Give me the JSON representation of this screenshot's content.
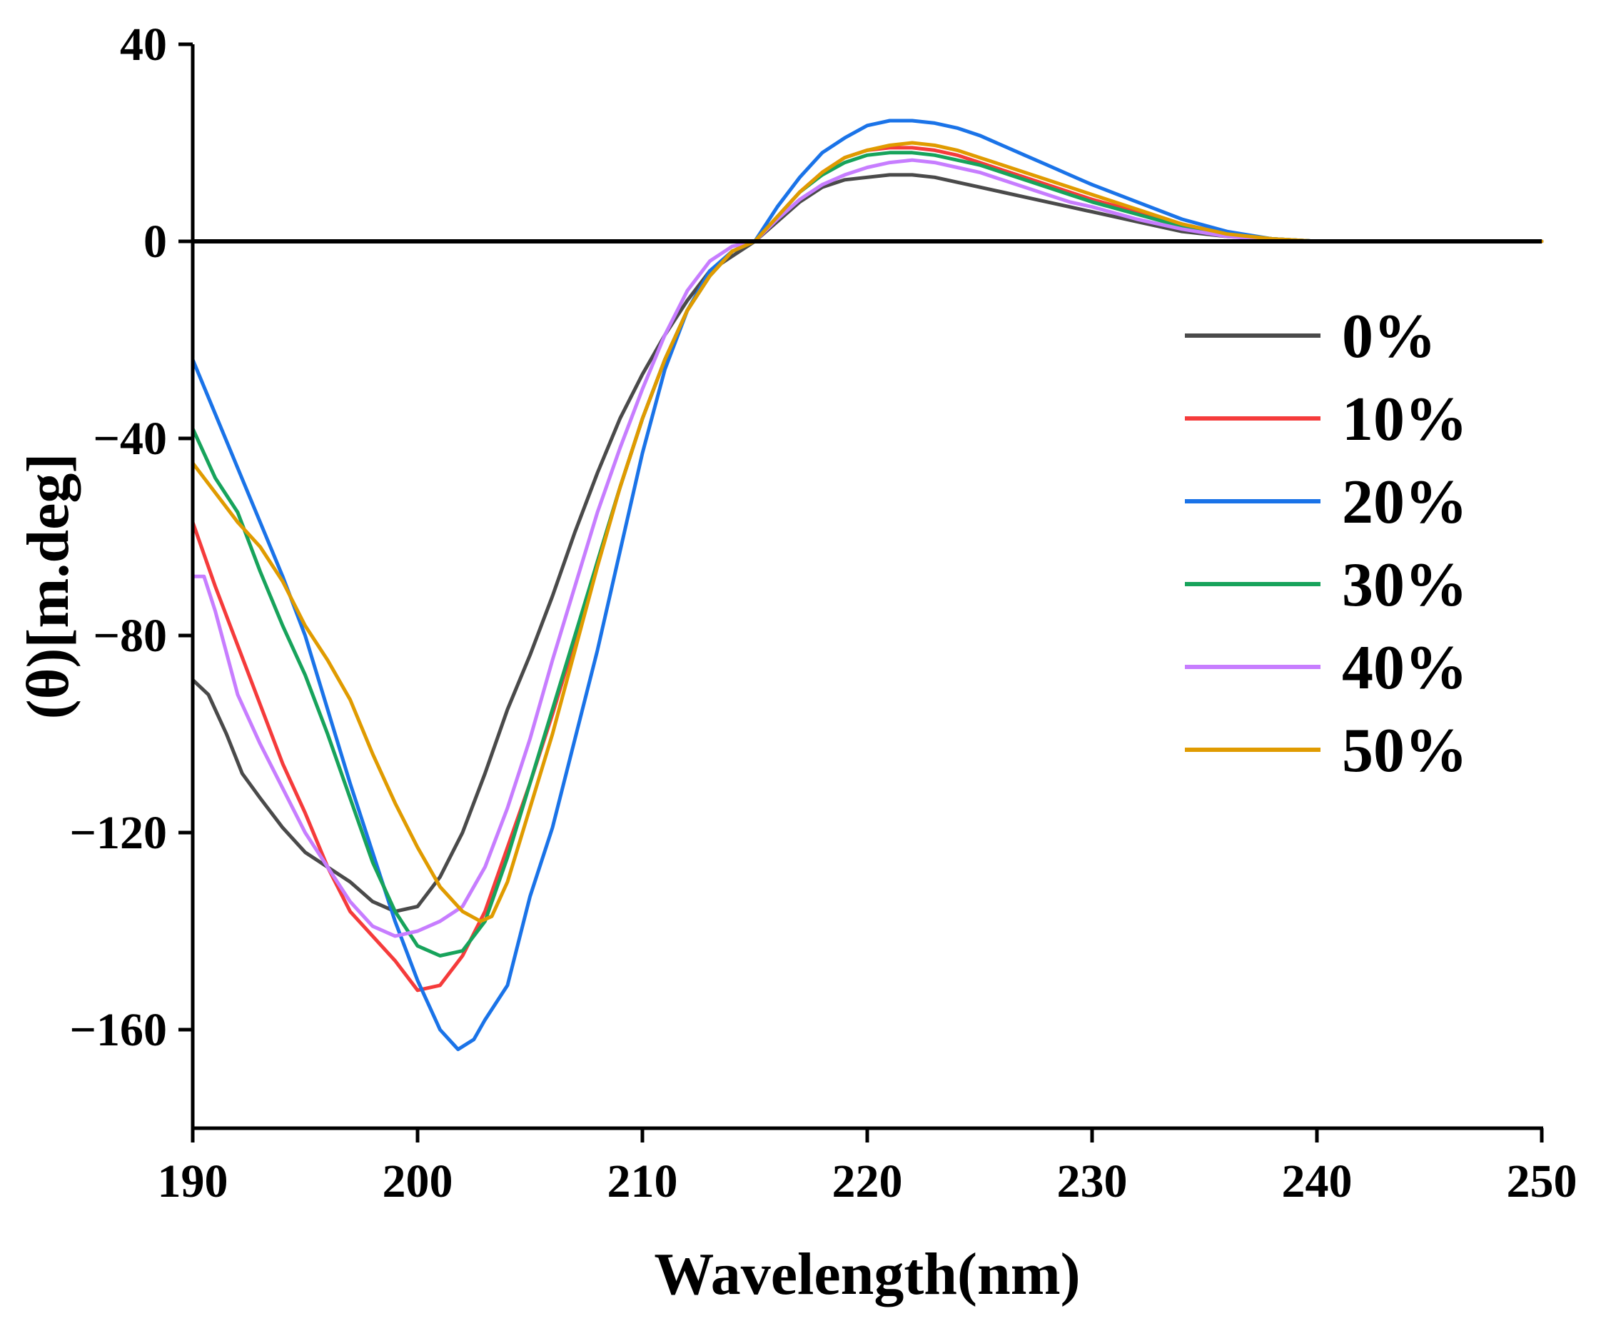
{
  "chart_data": {
    "type": "line",
    "title": "",
    "xlabel": "Wavelength(nm)",
    "ylabel": "(θ)[m.deg]",
    "xlim": [
      190,
      250
    ],
    "ylim": [
      -180,
      40
    ],
    "xticks": [
      190,
      200,
      210,
      220,
      230,
      240,
      250
    ],
    "yticks": [
      40,
      0,
      -40,
      -80,
      -120,
      -160
    ],
    "ytick_labels": [
      "40",
      "0",
      "−40",
      "−80",
      "−120",
      "−160"
    ],
    "zero_line": true,
    "grid": false,
    "legend_position": "right",
    "series": [
      {
        "name": "0%",
        "color": "#4a4a4a",
        "x": [
          190,
          190.7,
          191.5,
          192.2,
          193,
          194,
          195,
          196,
          197,
          198,
          199,
          200,
          201,
          202,
          203,
          204,
          205,
          206,
          207,
          208,
          209,
          210,
          211,
          212,
          213,
          214,
          215,
          216,
          217,
          218,
          219,
          220,
          221,
          222,
          223,
          224,
          225,
          226,
          227,
          228,
          229,
          230,
          232,
          234,
          236,
          238,
          240,
          245,
          250
        ],
        "y": [
          -89,
          -92,
          -100,
          -108,
          -113,
          -119,
          -124,
          -127,
          -130,
          -134,
          -136,
          -135,
          -129,
          -120,
          -108,
          -95,
          -84,
          -72,
          -59,
          -47,
          -36,
          -27,
          -19,
          -12,
          -6,
          -3,
          0,
          4,
          8,
          11,
          12.5,
          13,
          13.5,
          13.5,
          13,
          12,
          11,
          10,
          9,
          8,
          7,
          6,
          4,
          2,
          1,
          0.5,
          0,
          0,
          0
        ]
      },
      {
        "name": "10%",
        "color": "#f53b3b",
        "x": [
          190,
          191,
          192,
          193,
          194,
          195,
          196,
          197,
          198,
          199,
          200,
          201,
          202,
          203,
          204,
          205,
          206,
          207,
          208,
          209,
          210,
          211,
          212,
          213,
          214,
          215,
          216,
          217,
          218,
          219,
          220,
          221,
          222,
          223,
          224,
          225,
          226,
          227,
          228,
          229,
          230,
          232,
          234,
          236,
          238,
          240,
          245,
          250
        ],
        "y": [
          -57,
          -70,
          -82,
          -94,
          -106,
          -116,
          -127,
          -136,
          -141,
          -146,
          -152,
          -151,
          -145,
          -136,
          -123,
          -110,
          -96,
          -81,
          -65,
          -50,
          -36,
          -24,
          -14,
          -7,
          -2,
          0,
          5,
          10,
          14,
          17,
          18.5,
          19,
          19,
          18.5,
          17.5,
          16,
          14.5,
          13,
          11.5,
          10,
          8.5,
          6,
          3.5,
          1.5,
          0.5,
          0,
          0,
          0
        ]
      },
      {
        "name": "20%",
        "color": "#1a73e8",
        "x": [
          190,
          191,
          192,
          193,
          194,
          195,
          196,
          197,
          198,
          199,
          200,
          201,
          201.8,
          202.5,
          203,
          204,
          205,
          206,
          207,
          208,
          209,
          210,
          211,
          212,
          213,
          214,
          215,
          216,
          217,
          218,
          219,
          220,
          221,
          222,
          223,
          224,
          225,
          226,
          227,
          228,
          229,
          230,
          232,
          234,
          236,
          238,
          240,
          245,
          250
        ],
        "y": [
          -24,
          -35,
          -46,
          -57,
          -68,
          -80,
          -95,
          -110,
          -124,
          -138,
          -150,
          -160,
          -164,
          -162,
          -158,
          -151,
          -133,
          -119,
          -101,
          -83,
          -63,
          -43,
          -26,
          -14,
          -6,
          -2,
          0,
          7,
          13,
          18,
          21,
          23.5,
          24.5,
          24.5,
          24,
          23,
          21.5,
          19.5,
          17.5,
          15.5,
          13.5,
          11.5,
          8,
          4.5,
          2,
          0.5,
          0,
          0,
          0
        ]
      },
      {
        "name": "30%",
        "color": "#17a35b",
        "x": [
          190,
          191,
          192,
          193,
          194,
          195,
          196,
          197,
          198,
          199,
          200,
          201,
          202,
          203,
          204,
          205,
          206,
          207,
          208,
          209,
          210,
          211,
          212,
          213,
          214,
          215,
          216,
          217,
          218,
          219,
          220,
          221,
          222,
          223,
          224,
          225,
          226,
          227,
          228,
          229,
          230,
          232,
          234,
          236,
          238,
          240,
          245,
          250
        ],
        "y": [
          -38,
          -48,
          -55,
          -67,
          -78,
          -88,
          -100,
          -113,
          -126,
          -136,
          -143,
          -145,
          -144,
          -138,
          -125,
          -110,
          -95,
          -80,
          -65,
          -50,
          -36,
          -24,
          -14,
          -7,
          -2,
          0,
          5,
          10,
          13.5,
          16,
          17.5,
          18,
          18,
          17.5,
          16.5,
          15.5,
          14,
          12.5,
          11,
          9.5,
          8,
          5.5,
          3,
          1.5,
          0.5,
          0,
          0,
          0
        ]
      },
      {
        "name": "40%",
        "color": "#c77dff",
        "x": [
          190,
          190.5,
          191,
          192,
          193,
          194,
          195,
          196,
          197,
          198,
          199,
          200,
          201,
          202,
          203,
          204,
          205,
          206,
          207,
          208,
          209,
          210,
          211,
          212,
          213,
          214,
          215,
          216,
          217,
          218,
          219,
          220,
          221,
          222,
          223,
          224,
          225,
          226,
          227,
          228,
          229,
          230,
          232,
          234,
          236,
          238,
          240,
          245,
          250
        ],
        "y": [
          -68,
          -68,
          -75,
          -92,
          -102,
          -111,
          -120,
          -127,
          -134,
          -139,
          -141,
          -140,
          -138,
          -135,
          -127,
          -115,
          -101,
          -85,
          -70,
          -55,
          -42,
          -30,
          -19,
          -10,
          -4,
          -1,
          0,
          4.5,
          8.5,
          11.5,
          13.5,
          15,
          16,
          16.5,
          16,
          15,
          14,
          12.5,
          11,
          9.5,
          8,
          7,
          4.5,
          2.5,
          1,
          0.3,
          0,
          0,
          0
        ]
      },
      {
        "name": "50%",
        "color": "#e09b00",
        "x": [
          190,
          191,
          192,
          193,
          194,
          195,
          196,
          197,
          198,
          199,
          200,
          201,
          202,
          202.8,
          203.3,
          204,
          205,
          206,
          207,
          208,
          209,
          210,
          211,
          212,
          213,
          214,
          215,
          216,
          217,
          218,
          219,
          220,
          221,
          222,
          223,
          224,
          225,
          226,
          227,
          228,
          229,
          230,
          232,
          234,
          236,
          238,
          240,
          245,
          250
        ],
        "y": [
          -45,
          -51,
          -57,
          -62,
          -69,
          -78,
          -85,
          -93,
          -104,
          -114,
          -123,
          -131,
          -136,
          -138,
          -137,
          -130,
          -115,
          -100,
          -83,
          -66,
          -50,
          -36,
          -24,
          -14,
          -7,
          -2,
          0,
          5,
          10,
          14,
          17,
          18.5,
          19.5,
          20,
          19.5,
          18.5,
          17,
          15.5,
          14,
          12.5,
          11,
          9.5,
          6.5,
          3.5,
          1.5,
          0.5,
          0,
          0,
          0
        ]
      }
    ]
  }
}
